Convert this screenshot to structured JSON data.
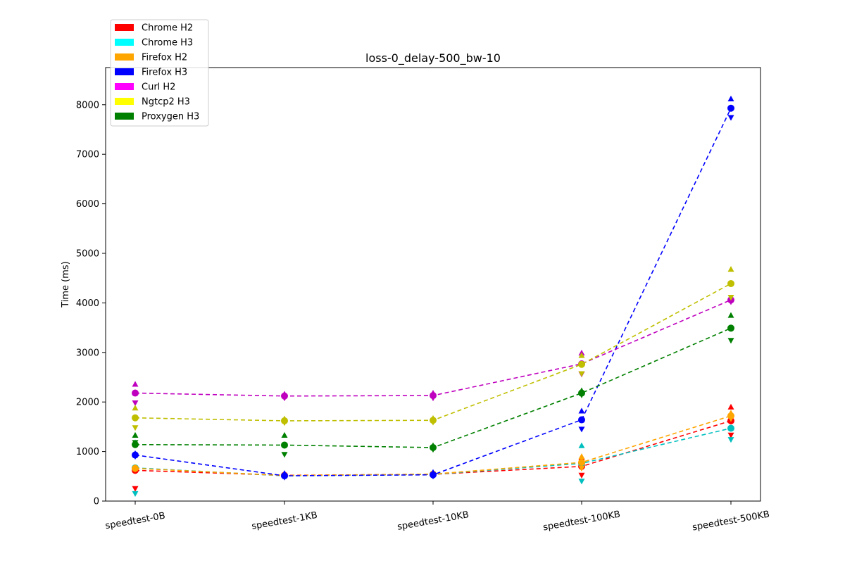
{
  "chart_data": {
    "type": "line",
    "title": "loss-0_delay-500_bw-10",
    "xlabel": "",
    "ylabel": "Time (ms)",
    "categories": [
      "speedtest-0B",
      "speedtest-1KB",
      "speedtest-10KB",
      "speedtest-100KB",
      "speedtest-500KB"
    ],
    "ylim": [
      0,
      8750
    ],
    "yticks": [
      0,
      1000,
      2000,
      3000,
      4000,
      5000,
      6000,
      7000,
      8000
    ],
    "grid": false,
    "legend_position": "top-left",
    "series": [
      {
        "name": "Chrome H2",
        "color": "#ff0000",
        "line_color": "#ff0000",
        "values": [
          620,
          520,
          540,
          700,
          1620
        ],
        "max": [
          640,
          540,
          560,
          880,
          1900
        ],
        "min": [
          250,
          500,
          520,
          520,
          1330
        ]
      },
      {
        "name": "Chrome H3",
        "color": "#00ffff",
        "line_color": "#00bfbf",
        "values": [
          670,
          510,
          540,
          760,
          1470
        ],
        "max": [
          1180,
          530,
          560,
          1120,
          1480
        ],
        "min": [
          150,
          490,
          520,
          400,
          1240
        ]
      },
      {
        "name": "Firefox H2",
        "color": "#ffa500",
        "line_color": "#ffa500",
        "values": [
          660,
          515,
          545,
          780,
          1720
        ],
        "max": [
          680,
          535,
          565,
          900,
          1780
        ],
        "min": [
          640,
          495,
          525,
          660,
          1660
        ]
      },
      {
        "name": "Firefox H3",
        "color": "#0000ff",
        "line_color": "#0000ff",
        "values": [
          930,
          510,
          530,
          1640,
          7930
        ],
        "max": [
          960,
          560,
          580,
          1820,
          8120
        ],
        "min": [
          900,
          480,
          500,
          1450,
          7740
        ]
      },
      {
        "name": "Curl H2",
        "color": "#ff00ff",
        "line_color": "#bf00bf",
        "values": [
          2180,
          2120,
          2130,
          2770,
          4060
        ],
        "max": [
          2360,
          2160,
          2180,
          2990,
          4100
        ],
        "min": [
          1980,
          2080,
          2080,
          2560,
          4020
        ]
      },
      {
        "name": "Ngtcp2 H3",
        "color": "#ffff00",
        "line_color": "#bfbf00",
        "values": [
          1680,
          1620,
          1630,
          2760,
          4390
        ],
        "max": [
          1880,
          1660,
          1670,
          2940,
          4680
        ],
        "min": [
          1480,
          1580,
          1590,
          2570,
          4110
        ]
      },
      {
        "name": "Proxygen H3",
        "color": "#008000",
        "line_color": "#008000",
        "values": [
          1140,
          1130,
          1080,
          2180,
          3490
        ],
        "max": [
          1330,
          1330,
          1120,
          2230,
          3750
        ],
        "min": [
          1180,
          940,
          1040,
          2140,
          3240
        ]
      }
    ]
  }
}
